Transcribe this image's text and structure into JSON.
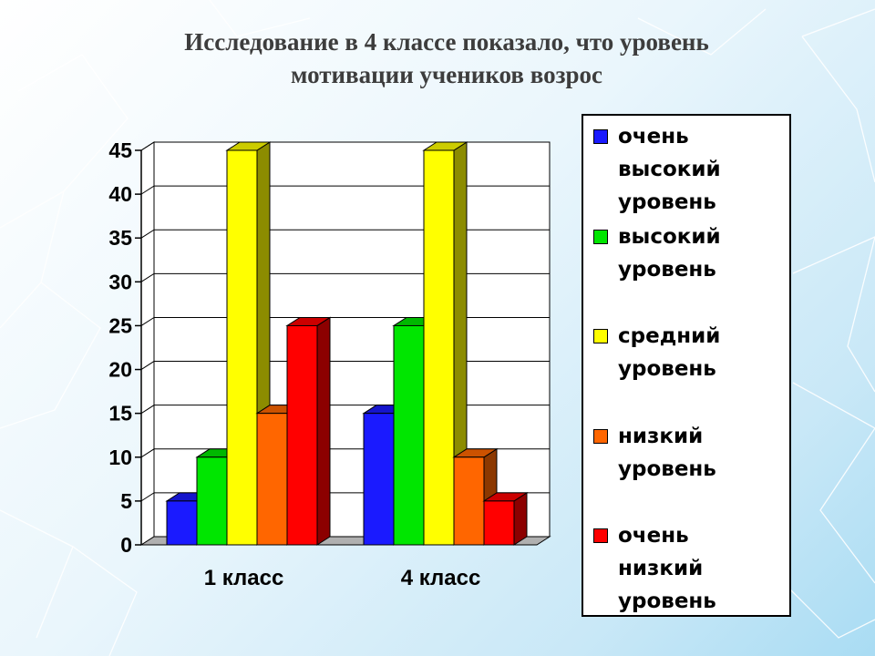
{
  "title": {
    "line1": "Исследование в 4 классе показало, что уровень",
    "line2": "мотивации учеников возрос"
  },
  "chart_data": {
    "type": "bar",
    "categories": [
      "1 класс",
      "4 класс"
    ],
    "series": [
      {
        "name": "очень высокий уровень",
        "values": [
          5,
          15
        ],
        "color": "#1a1aff",
        "legend_label": "очень\nвысокий\nуровень"
      },
      {
        "name": "высокий уровень",
        "values": [
          10,
          25
        ],
        "color": "#00e600",
        "legend_label": "высокий\nуровень"
      },
      {
        "name": "средний уровень",
        "values": [
          45,
          45
        ],
        "color": "#ffff00",
        "legend_label": "средний\nуровень"
      },
      {
        "name": "низкий уровень",
        "values": [
          15,
          10
        ],
        "color": "#ff6600",
        "legend_label": "низкий\nуровень"
      },
      {
        "name": "очень низкий уровень",
        "values": [
          25,
          5
        ],
        "color": "#ff0000",
        "legend_label": "очень\nнизкий\nуровень"
      }
    ],
    "yticks": [
      "0",
      "5",
      "10",
      "15",
      "20",
      "25",
      "30",
      "35",
      "40",
      "45"
    ],
    "ylim": [
      0,
      45
    ],
    "grid": true,
    "legend_position": "right",
    "style": "3d"
  }
}
